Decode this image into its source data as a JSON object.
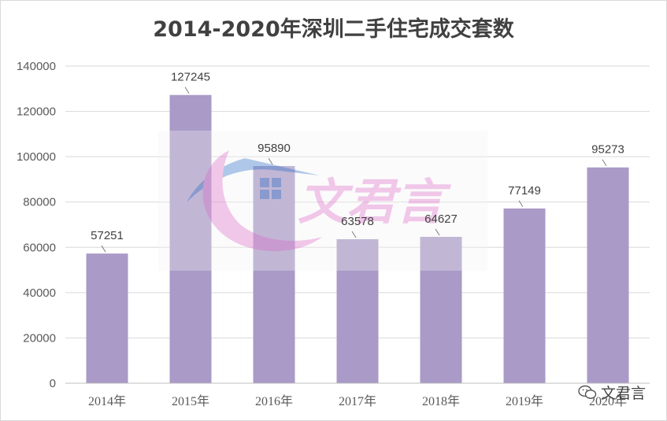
{
  "chart_data": {
    "type": "bar",
    "title": "2014-2020年深圳二手住宅成交套数",
    "categories": [
      "2014年",
      "2015年",
      "2016年",
      "2017年",
      "2018年",
      "2019年",
      "2020年"
    ],
    "values": [
      57251,
      127245,
      95890,
      63578,
      64627,
      77149,
      95273
    ],
    "ylim": [
      0,
      140000
    ],
    "yticks": [
      0,
      20000,
      40000,
      60000,
      80000,
      100000,
      120000,
      140000
    ],
    "xlabel": "",
    "ylabel": "",
    "grid": true,
    "legend": "none",
    "bar_color": "#a99ac7",
    "gridline_color": "#d9d9d9"
  },
  "watermark": {
    "text": "文君言",
    "colors": [
      "#e49ad8",
      "#6f9bd6"
    ]
  },
  "footer": {
    "source_label": "文君言",
    "icon": "wechat-icon"
  }
}
